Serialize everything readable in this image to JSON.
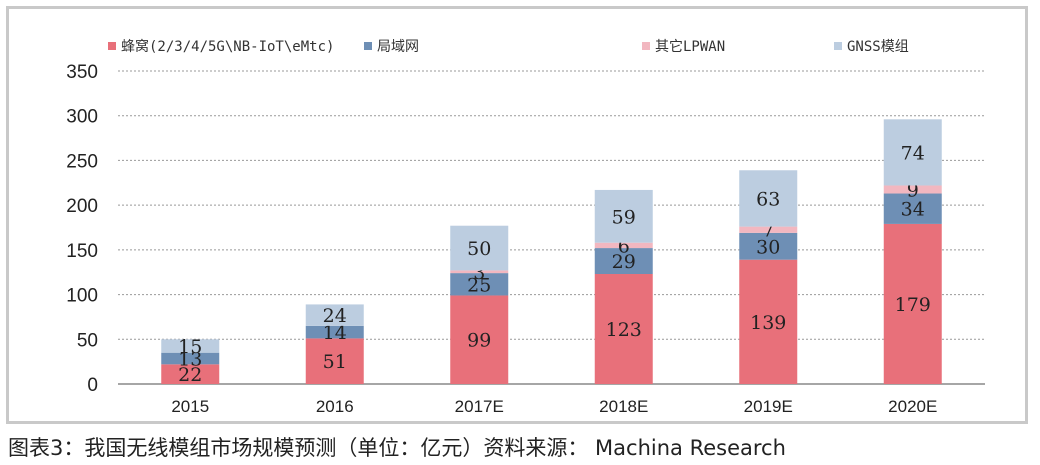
{
  "caption": "图表3：我国无线模组市场规模预测（单位：亿元）资料来源： Machina Research",
  "chart_data": {
    "type": "bar",
    "stacked": true,
    "categories": [
      "2015",
      "2016",
      "2017E",
      "2018E",
      "2019E",
      "2020E"
    ],
    "series": [
      {
        "name": "蜂窝(2/3/4/5G\\NB-IoT\\eMtc)",
        "color": "#e8707a",
        "values": [
          22,
          51,
          99,
          123,
          139,
          179
        ]
      },
      {
        "name": "局域网",
        "color": "#6e8fb5",
        "values": [
          13,
          14,
          25,
          29,
          30,
          34
        ]
      },
      {
        "name": "其它LPWAN",
        "color": "#f2b7c0",
        "values": [
          0,
          0,
          3,
          6,
          7,
          9
        ]
      },
      {
        "name": "GNSS模组",
        "color": "#bccde0",
        "values": [
          15,
          24,
          50,
          59,
          63,
          74
        ]
      }
    ],
    "ylim": [
      0,
      350
    ],
    "yticks": [
      0,
      50,
      100,
      150,
      200,
      250,
      300,
      350
    ],
    "grid": true,
    "legend_position": "top"
  }
}
